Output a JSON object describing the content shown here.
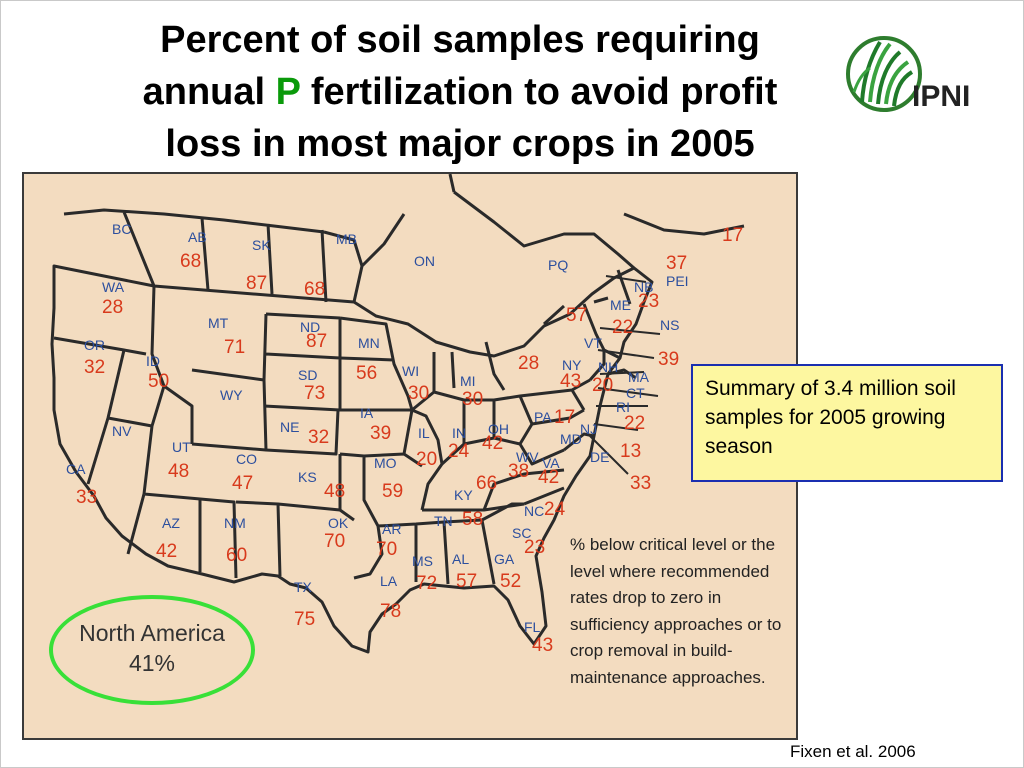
{
  "title": {
    "line1": "Percent of soil samples requiring",
    "line2_before": "annual",
    "line2_p": "P",
    "line2_after": "fertilization to avoid profit",
    "line3": "loss in most major crops in 2005"
  },
  "logo": {
    "text": "IPNI",
    "icon": "ipni-grass-logo"
  },
  "summary": "Summary of 3.4 million soil samples for 2005 growing season",
  "legend": "% below critical level or the level where recommended rates drop to zero in sufficiency approaches or to crop removal in build-maintenance approaches.",
  "north_america": {
    "label": "North America",
    "value": "41%"
  },
  "source": "Fixen et al. 2006",
  "colors": {
    "state_label": "#2c4f9e",
    "value": "#d83a1c",
    "map_bg": "#f3dcc0",
    "oval": "#38e038",
    "summary_bg": "#fdf7a0",
    "summary_border": "#1a2fb0",
    "title_p": "#0a9a0a"
  },
  "regions": {
    "BC": {
      "abbr": "BC",
      "value": ""
    },
    "AB": {
      "abbr": "AB",
      "value": "68"
    },
    "SK": {
      "abbr": "SK",
      "value": "87"
    },
    "MB": {
      "abbr": "MB",
      "value": "68"
    },
    "ON": {
      "abbr": "ON",
      "value": ""
    },
    "PQ": {
      "abbr": "PQ",
      "value": "57"
    },
    "NB": {
      "abbr": "NB",
      "value": "23"
    },
    "PEI": {
      "abbr": "PEI",
      "value": "37"
    },
    "NS": {
      "abbr": "NS",
      "value": "39"
    },
    "NF": {
      "abbr": "",
      "value": "17"
    },
    "WA": {
      "abbr": "WA",
      "value": "28"
    },
    "OR": {
      "abbr": "OR",
      "value": "32"
    },
    "ID": {
      "abbr": "ID",
      "value": "50"
    },
    "MT": {
      "abbr": "MT",
      "value": "71"
    },
    "WY": {
      "abbr": "WY",
      "value": ""
    },
    "ND": {
      "abbr": "ND",
      "value": "87"
    },
    "SD": {
      "abbr": "SD",
      "value": "73"
    },
    "NE": {
      "abbr": "NE",
      "value": "32"
    },
    "KS": {
      "abbr": "KS",
      "value": "48"
    },
    "OK": {
      "abbr": "OK",
      "value": "70"
    },
    "TX": {
      "abbr": "TX",
      "value": "75"
    },
    "NV": {
      "abbr": "NV",
      "value": ""
    },
    "CA": {
      "abbr": "CA",
      "value": "33"
    },
    "UT": {
      "abbr": "UT",
      "value": "48"
    },
    "CO": {
      "abbr": "CO",
      "value": "47"
    },
    "AZ": {
      "abbr": "AZ",
      "value": "42"
    },
    "NM": {
      "abbr": "NM",
      "value": "60"
    },
    "MN": {
      "abbr": "MN",
      "value": "56"
    },
    "IA": {
      "abbr": "IA",
      "value": "39"
    },
    "MO": {
      "abbr": "MO",
      "value": "59"
    },
    "AR": {
      "abbr": "AR",
      "value": "70"
    },
    "LA": {
      "abbr": "LA",
      "value": "78"
    },
    "WI": {
      "abbr": "WI",
      "value": "30"
    },
    "IL": {
      "abbr": "IL",
      "value": "20"
    },
    "MS": {
      "abbr": "MS",
      "value": "72"
    },
    "MI": {
      "abbr": "MI",
      "value": "30"
    },
    "IN": {
      "abbr": "IN",
      "value": "24"
    },
    "OH": {
      "abbr": "OH",
      "value": "42"
    },
    "KY": {
      "abbr": "KY",
      "value": "66"
    },
    "TN": {
      "abbr": "TN",
      "value": "58"
    },
    "AL": {
      "abbr": "AL",
      "value": "57"
    },
    "GA": {
      "abbr": "GA",
      "value": "52"
    },
    "FL": {
      "abbr": "FL",
      "value": "43"
    },
    "SC": {
      "abbr": "SC",
      "value": "23"
    },
    "NC": {
      "abbr": "NC",
      "value": "24"
    },
    "VA": {
      "abbr": "VA",
      "value": "42"
    },
    "WV": {
      "abbr": "WV",
      "value": "38"
    },
    "PA": {
      "abbr": "PA",
      "value": "17"
    },
    "NY": {
      "abbr": "NY",
      "value": "43"
    },
    "VT": {
      "abbr": "VT",
      "value": ""
    },
    "NH": {
      "abbr": "NH",
      "value": "20"
    },
    "ME": {
      "abbr": "ME",
      "value": "22"
    },
    "MA": {
      "abbr": "MA",
      "value": ""
    },
    "CT": {
      "abbr": "CT",
      "value": ""
    },
    "RI": {
      "abbr": "RI",
      "value": "22"
    },
    "NJ": {
      "abbr": "NJ",
      "value": "13"
    },
    "DE": {
      "abbr": "DE",
      "value": "33"
    },
    "MD": {
      "abbr": "MD",
      "value": ""
    },
    "MI_N": {
      "abbr": "",
      "value": "28"
    }
  }
}
